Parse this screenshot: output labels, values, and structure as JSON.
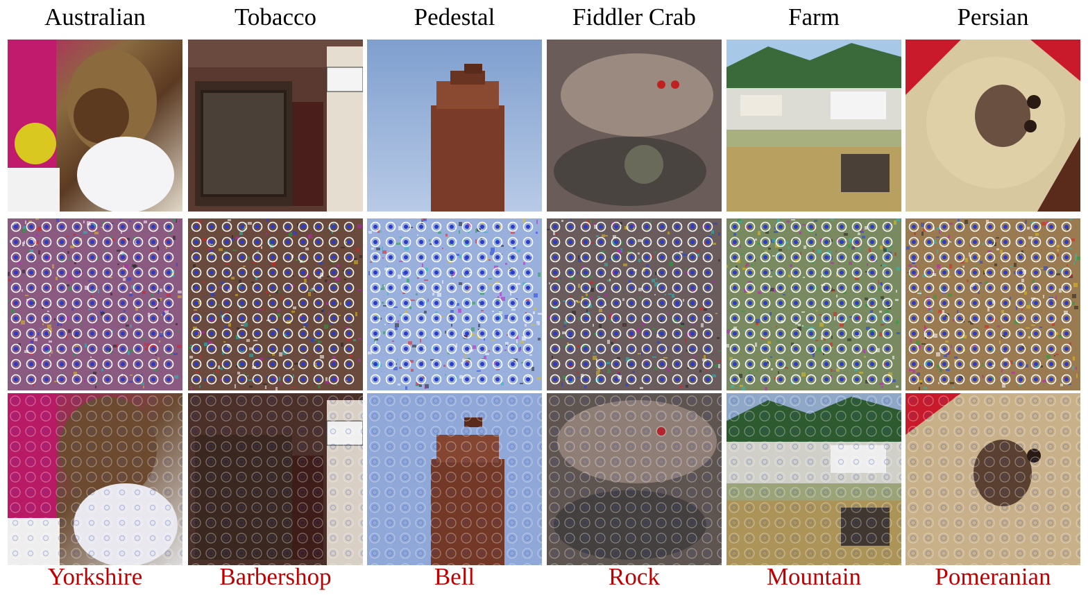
{
  "figure": {
    "columns": [
      {
        "original_class": "Australian",
        "adversarial_class": "Yorkshire",
        "tiles": {
          "clean": "yorkshire-terrier-photo",
          "perturbation": "perturbation-pattern",
          "adversarial": "adversarial-yorkshire-photo"
        }
      },
      {
        "original_class": "Tobacco",
        "adversarial_class": "Barbershop",
        "tiles": {
          "clean": "shopfront-photo",
          "perturbation": "perturbation-pattern",
          "adversarial": "adversarial-shopfront-photo"
        }
      },
      {
        "original_class": "Pedestal",
        "adversarial_class": "Bell",
        "tiles": {
          "clean": "brick-chimney-photo",
          "perturbation": "perturbation-pattern",
          "adversarial": "adversarial-chimney-photo"
        }
      },
      {
        "original_class": "Fiddler Crab",
        "adversarial_class": "Rock",
        "tiles": {
          "clean": "crab-photo",
          "perturbation": "perturbation-pattern",
          "adversarial": "adversarial-crab-photo"
        }
      },
      {
        "original_class": "Farm",
        "adversarial_class": "Mountain",
        "tiles": {
          "clean": "farm-field-photo",
          "perturbation": "perturbation-pattern",
          "adversarial": "adversarial-farm-photo"
        }
      },
      {
        "original_class": "Persian",
        "adversarial_class": "Pomeranian",
        "tiles": {
          "clean": "persian-cat-photo",
          "perturbation": "perturbation-pattern",
          "adversarial": "adversarial-cat-photo"
        }
      }
    ],
    "colors": {
      "original_label": "#000000",
      "adversarial_label": "#c00000"
    }
  }
}
